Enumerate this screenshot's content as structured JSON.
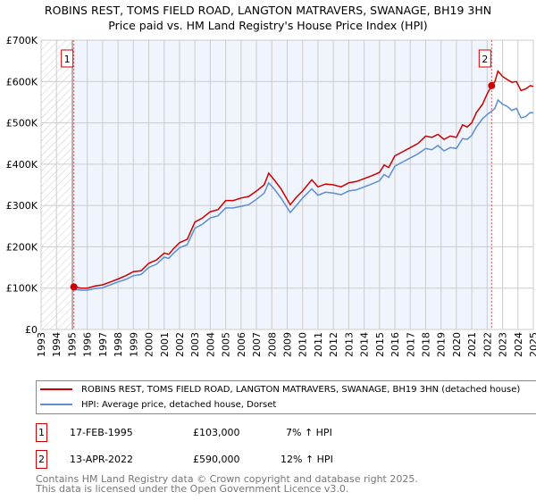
{
  "chart_data": {
    "type": "line",
    "title": "ROBINS REST, TOMS FIELD ROAD, LANGTON MATRAVERS, SWANAGE, BH19 3HN",
    "subtitle": "Price paid vs. HM Land Registry's House Price Index (HPI)",
    "xlim": [
      1993,
      2025
    ],
    "ylim": [
      0,
      700000
    ],
    "y_ticks": [
      {
        "v": 0,
        "label": "£0"
      },
      {
        "v": 100000,
        "label": "£100K"
      },
      {
        "v": 200000,
        "label": "£200K"
      },
      {
        "v": 300000,
        "label": "£300K"
      },
      {
        "v": 400000,
        "label": "£400K"
      },
      {
        "v": 500000,
        "label": "£500K"
      },
      {
        "v": 600000,
        "label": "£600K"
      },
      {
        "v": 700000,
        "label": "£700K"
      }
    ],
    "x_ticks": [
      "1993",
      "1994",
      "1995",
      "1996",
      "1997",
      "1998",
      "1999",
      "2000",
      "2001",
      "2002",
      "2003",
      "2004",
      "2005",
      "2006",
      "2007",
      "2008",
      "2009",
      "2010",
      "2011",
      "2012",
      "2013",
      "2014",
      "2015",
      "2016",
      "2017",
      "2018",
      "2019",
      "2020",
      "2021",
      "2022",
      "2023",
      "2024",
      "2025"
    ],
    "grid": true,
    "series": [
      {
        "name": "ROBINS REST, TOMS FIELD ROAD, LANGTON MATRAVERS, SWANAGE, BH19 3HN (detached house)",
        "color": "#cc0000",
        "x": [
          1995.13,
          1995.6,
          1996,
          1996.5,
          1997,
          1997.5,
          1998,
          1998.5,
          1999,
          1999.5,
          2000,
          2000.5,
          2001,
          2001.3,
          2001.6,
          2002,
          2002.5,
          2003,
          2003.5,
          2004,
          2004.5,
          2005,
          2005.5,
          2006,
          2006.5,
          2007,
          2007.5,
          2007.8,
          2008.2,
          2008.6,
          2009.2,
          2009.6,
          2010,
          2010.6,
          2011,
          2011.5,
          2012,
          2012.5,
          2013,
          2013.5,
          2014,
          2014.5,
          2015,
          2015.3,
          2015.6,
          2016,
          2016.5,
          2017,
          2017.5,
          2018,
          2018.4,
          2018.8,
          2019.2,
          2019.6,
          2020,
          2020.4,
          2020.7,
          2021,
          2021.3,
          2021.7,
          2022,
          2022.29,
          2022.5,
          2022.7,
          2023,
          2023.3,
          2023.6,
          2023.9,
          2024.2,
          2024.5,
          2024.8,
          2025
        ],
        "y": [
          103000,
          100000,
          100000,
          105000,
          108000,
          115000,
          122000,
          130000,
          140000,
          142000,
          160000,
          168000,
          185000,
          182000,
          195000,
          210000,
          218000,
          260000,
          270000,
          285000,
          290000,
          312000,
          312000,
          318000,
          322000,
          335000,
          350000,
          378000,
          360000,
          340000,
          302000,
          320000,
          335000,
          362000,
          345000,
          352000,
          350000,
          345000,
          355000,
          358000,
          365000,
          372000,
          380000,
          398000,
          392000,
          420000,
          430000,
          440000,
          450000,
          468000,
          465000,
          472000,
          460000,
          468000,
          465000,
          495000,
          490000,
          500000,
          525000,
          545000,
          570000,
          590000,
          600000,
          625000,
          612000,
          605000,
          598000,
          600000,
          578000,
          582000,
          590000,
          588000
        ]
      },
      {
        "name": "HPI: Average price, detached house, Dorset",
        "color": "#5b8fd0",
        "x": [
          1995.13,
          1995.6,
          1996,
          1996.5,
          1997,
          1997.5,
          1998,
          1998.5,
          1999,
          1999.5,
          2000,
          2000.5,
          2001,
          2001.3,
          2001.6,
          2002,
          2002.5,
          2003,
          2003.5,
          2004,
          2004.5,
          2005,
          2005.5,
          2006,
          2006.5,
          2007,
          2007.5,
          2007.8,
          2008.2,
          2008.6,
          2009.2,
          2009.6,
          2010,
          2010.6,
          2011,
          2011.5,
          2012,
          2012.5,
          2013,
          2013.5,
          2014,
          2014.5,
          2015,
          2015.3,
          2015.6,
          2016,
          2016.5,
          2017,
          2017.5,
          2018,
          2018.4,
          2018.8,
          2019.2,
          2019.6,
          2020,
          2020.4,
          2020.7,
          2021,
          2021.3,
          2021.7,
          2022,
          2022.29,
          2022.5,
          2022.7,
          2023,
          2023.3,
          2023.6,
          2023.9,
          2024.2,
          2024.5,
          2024.8,
          2025
        ],
        "y": [
          97000,
          95000,
          95000,
          99000,
          101000,
          108000,
          115000,
          121000,
          130000,
          133000,
          150000,
          158000,
          175000,
          172000,
          184000,
          198000,
          205000,
          245000,
          255000,
          270000,
          275000,
          294000,
          294000,
          298000,
          302000,
          315000,
          330000,
          355000,
          338000,
          318000,
          283000,
          300000,
          318000,
          340000,
          325000,
          332000,
          330000,
          326000,
          335000,
          338000,
          345000,
          352000,
          360000,
          375000,
          368000,
          395000,
          405000,
          415000,
          425000,
          438000,
          435000,
          445000,
          432000,
          440000,
          438000,
          462000,
          460000,
          470000,
          490000,
          510000,
          520000,
          528000,
          535000,
          555000,
          545000,
          540000,
          530000,
          535000,
          512000,
          515000,
          525000,
          524000
        ]
      }
    ],
    "annotations": [
      {
        "label": "1",
        "x": 1995.13,
        "y": 103000
      },
      {
        "label": "2",
        "x": 2022.29,
        "y": 590000
      }
    ],
    "legend_position": "below"
  },
  "transactions": [
    {
      "num": "1",
      "date": "17-FEB-1995",
      "price": "£103,000",
      "hpi": "7% ↑ HPI"
    },
    {
      "num": "2",
      "date": "13-APR-2022",
      "price": "£590,000",
      "hpi": "12% ↑ HPI"
    }
  ],
  "footer": [
    "Contains HM Land Registry data © Crown copyright and database right 2025.",
    "This data is licensed under the Open Government Licence v3.0."
  ]
}
